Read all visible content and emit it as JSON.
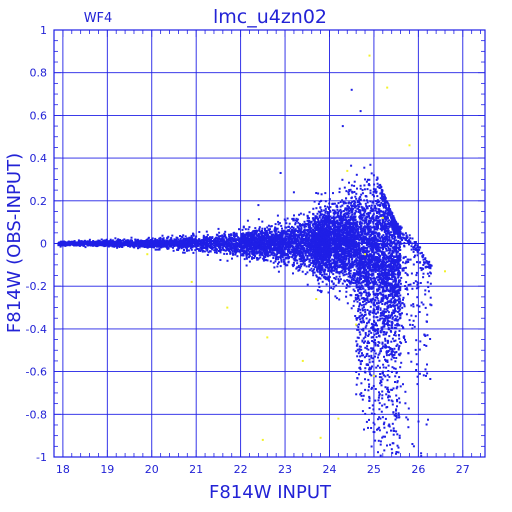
{
  "chart_data": {
    "type": "scatter",
    "title": "lmc_u4zn02",
    "panel_label": "WF4",
    "xlabel": "F814W INPUT",
    "ylabel": "F814W (OBS-INPUT)",
    "xlim": [
      17.8,
      27.5
    ],
    "ylim": [
      -1,
      1
    ],
    "x_ticks": [
      18,
      19,
      20,
      21,
      22,
      23,
      24,
      25,
      26,
      27
    ],
    "y_ticks": [
      1,
      0.8,
      0.6,
      0.4,
      0.2,
      0,
      -0.2,
      -0.4,
      -0.6,
      -0.8,
      -1
    ],
    "x_tick_labels": [
      "18",
      "19",
      "20",
      "21",
      "22",
      "23",
      "24",
      "25",
      "26",
      "27"
    ],
    "y_tick_labels": [
      "1",
      "0.8",
      "0.6",
      "0.4",
      "0.2",
      "0",
      "-0.2",
      "-0.4",
      "-0.6",
      "-0.8",
      "-1"
    ],
    "grid": true,
    "series": [
      {
        "color": "#1f1fe6",
        "envelope": {
          "x": [
            17.9,
            19,
            20,
            21,
            22,
            23,
            23.5,
            24,
            24.5,
            25,
            25.5,
            26,
            26.3
          ],
          "sigma": [
            0.008,
            0.012,
            0.018,
            0.03,
            0.05,
            0.08,
            0.11,
            0.15,
            0.2,
            0.27,
            0.34,
            0.4,
            0.45
          ],
          "upper_limit": [
            0.04,
            0.06,
            0.08,
            0.12,
            0.18,
            0.26,
            0.32,
            0.42,
            0.5,
            0.35,
            0.1,
            0.0,
            -0.1
          ]
        },
        "representative_points": [
          {
            "x": 24.5,
            "y": 0.72
          },
          {
            "x": 24.7,
            "y": 0.62
          },
          {
            "x": 24.3,
            "y": 0.55
          },
          {
            "x": 22.4,
            "y": 0.18
          },
          {
            "x": 23.2,
            "y": 0.24
          },
          {
            "x": 22.9,
            "y": 0.33
          },
          {
            "x": 25.5,
            "y": -0.88
          },
          {
            "x": 25.9,
            "y": -0.95
          }
        ]
      },
      {
        "color": "#f2f22a",
        "representative_points": [
          {
            "x": 24.9,
            "y": 0.88
          },
          {
            "x": 25.3,
            "y": 0.73
          },
          {
            "x": 24.4,
            "y": 0.34
          },
          {
            "x": 25.2,
            "y": 0.12
          },
          {
            "x": 24.8,
            "y": -0.05
          },
          {
            "x": 23.7,
            "y": -0.26
          },
          {
            "x": 22.6,
            "y": -0.44
          },
          {
            "x": 21.7,
            "y": -0.3
          },
          {
            "x": 23.4,
            "y": -0.55
          },
          {
            "x": 25.0,
            "y": -0.62
          },
          {
            "x": 24.2,
            "y": -0.82
          },
          {
            "x": 22.5,
            "y": -0.92
          },
          {
            "x": 23.8,
            "y": -0.91
          },
          {
            "x": 26.6,
            "y": -0.13
          },
          {
            "x": 25.8,
            "y": 0.46
          },
          {
            "x": 20.9,
            "y": -0.18
          },
          {
            "x": 19.9,
            "y": -0.05
          },
          {
            "x": 24.6,
            "y": -0.38
          }
        ]
      }
    ]
  }
}
